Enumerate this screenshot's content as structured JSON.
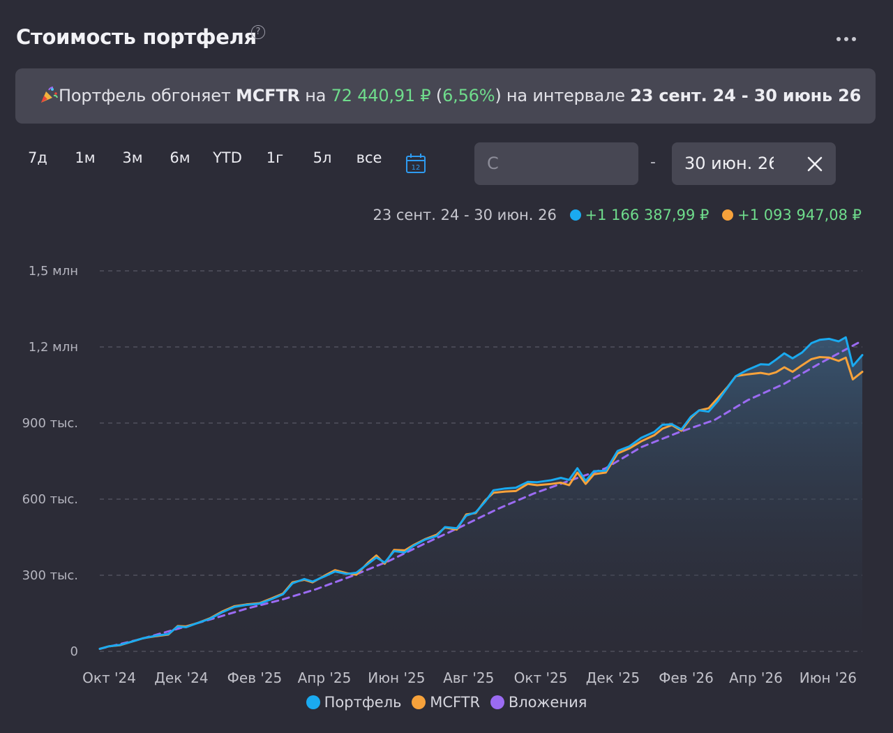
{
  "header": {
    "title": "Стоимость портфеля",
    "help_icon": "question-circle-icon",
    "more_icon": "more-horizontal-icon"
  },
  "banner": {
    "icon": "party-popper-icon",
    "text_1": "Портфель обгоняет ",
    "benchmark": "MCFTR",
    "text_2": " на ",
    "diff_value": "72 440,91 ₽",
    "text_3": " (",
    "diff_percent": "6,56%",
    "text_4": ") на интервале ",
    "interval": "23 сент. 24 - 30 июнь 26"
  },
  "periods": [
    "7д",
    "1м",
    "3м",
    "6м",
    "YTD",
    "1г",
    "5л",
    "все"
  ],
  "calendar": {
    "icon": "calendar-icon",
    "day": "12",
    "color": "#2e9bf0"
  },
  "date_range": {
    "from_placeholder": "С",
    "separator": "-",
    "to_value": "30 июн. 26",
    "clear_icon": "close-icon"
  },
  "summary": {
    "range": "23 сент. 24 - 30 июн. 26",
    "portfolio_change": "+1 166 387,99 ₽",
    "benchmark_change": "+1 093 947,08 ₽"
  },
  "colors": {
    "background": "#2c2c37",
    "positive": "#6fdc8c",
    "portfolio": "#1aaaf0",
    "mcftr": "#f7a23b",
    "investments": "#9b6bf2"
  },
  "legend": [
    {
      "name": "Портфель",
      "color": "#1aaaf0"
    },
    {
      "name": "MCFTR",
      "color": "#f7a23b"
    },
    {
      "name": "Вложения",
      "color": "#9b6bf2"
    }
  ],
  "chart_data": {
    "type": "line",
    "y_ticks": [
      {
        "value": 0,
        "label": "0"
      },
      {
        "value": 300000,
        "label": "300 тыс."
      },
      {
        "value": 600000,
        "label": "600 тыс."
      },
      {
        "value": 900000,
        "label": "900 тыс."
      },
      {
        "value": 1200000,
        "label": "1,2 млн"
      },
      {
        "value": 1500000,
        "label": "1,5 млн"
      }
    ],
    "ylim": [
      0,
      1500000
    ],
    "x_ticks": [
      {
        "date": "2024-10-01",
        "label": "Окт '24"
      },
      {
        "date": "2024-12-01",
        "label": "Дек '24"
      },
      {
        "date": "2025-02-01",
        "label": "Фев '25"
      },
      {
        "date": "2025-04-01",
        "label": "Апр '25"
      },
      {
        "date": "2025-06-01",
        "label": "Июн '25"
      },
      {
        "date": "2025-08-01",
        "label": "Авг '25"
      },
      {
        "date": "2025-10-01",
        "label": "Окт '25"
      },
      {
        "date": "2025-12-01",
        "label": "Дек '25"
      },
      {
        "date": "2026-02-01",
        "label": "Фев '26"
      },
      {
        "date": "2026-04-01",
        "label": "Апр '26"
      },
      {
        "date": "2026-06-01",
        "label": "Июн '26"
      }
    ],
    "xlim": [
      "2024-09-23",
      "2026-06-30"
    ],
    "grid": true,
    "legend_position": "bottom",
    "series": [
      {
        "name": "Портфель",
        "color": "#1aaaf0",
        "style": "solid",
        "points": [
          [
            "2024-09-23",
            10000
          ],
          [
            "2024-10-01",
            20000
          ],
          [
            "2024-10-10",
            25000
          ],
          [
            "2024-10-20",
            38000
          ],
          [
            "2024-10-30",
            52000
          ],
          [
            "2024-11-10",
            62000
          ],
          [
            "2024-11-20",
            68000
          ],
          [
            "2024-11-28",
            98000
          ],
          [
            "2024-12-05",
            95000
          ],
          [
            "2024-12-15",
            112000
          ],
          [
            "2024-12-25",
            128000
          ],
          [
            "2025-01-05",
            155000
          ],
          [
            "2025-01-15",
            175000
          ],
          [
            "2025-01-25",
            183000
          ],
          [
            "2025-02-05",
            188000
          ],
          [
            "2025-02-15",
            205000
          ],
          [
            "2025-02-25",
            225000
          ],
          [
            "2025-03-05",
            268000
          ],
          [
            "2025-03-15",
            285000
          ],
          [
            "2025-03-22",
            275000
          ],
          [
            "2025-04-01",
            295000
          ],
          [
            "2025-04-10",
            315000
          ],
          [
            "2025-04-20",
            305000
          ],
          [
            "2025-04-28",
            310000
          ],
          [
            "2025-05-08",
            345000
          ],
          [
            "2025-05-15",
            370000
          ],
          [
            "2025-05-22",
            350000
          ],
          [
            "2025-05-30",
            395000
          ],
          [
            "2025-06-08",
            390000
          ],
          [
            "2025-06-15",
            415000
          ],
          [
            "2025-06-25",
            440000
          ],
          [
            "2025-07-05",
            455000
          ],
          [
            "2025-07-12",
            490000
          ],
          [
            "2025-07-22",
            485000
          ],
          [
            "2025-07-30",
            535000
          ],
          [
            "2025-08-07",
            548000
          ],
          [
            "2025-08-15",
            590000
          ],
          [
            "2025-08-22",
            635000
          ],
          [
            "2025-09-01",
            642000
          ],
          [
            "2025-09-10",
            645000
          ],
          [
            "2025-09-20",
            668000
          ],
          [
            "2025-09-28",
            667000
          ],
          [
            "2025-10-10",
            675000
          ],
          [
            "2025-10-18",
            684000
          ],
          [
            "2025-10-25",
            676000
          ],
          [
            "2025-11-01",
            722000
          ],
          [
            "2025-11-08",
            672000
          ],
          [
            "2025-11-15",
            710000
          ],
          [
            "2025-11-25",
            712000
          ],
          [
            "2025-12-05",
            790000
          ],
          [
            "2025-12-15",
            808000
          ],
          [
            "2025-12-25",
            842000
          ],
          [
            "2026-01-05",
            865000
          ],
          [
            "2026-01-12",
            893000
          ],
          [
            "2026-01-20",
            895000
          ],
          [
            "2026-01-28",
            875000
          ],
          [
            "2026-02-05",
            925000
          ],
          [
            "2026-02-12",
            950000
          ],
          [
            "2026-02-20",
            945000
          ],
          [
            "2026-02-28",
            988000
          ],
          [
            "2026-03-08",
            1040000
          ],
          [
            "2026-03-15",
            1085000
          ],
          [
            "2026-03-25",
            1110000
          ],
          [
            "2026-04-05",
            1132000
          ],
          [
            "2026-04-12",
            1130000
          ],
          [
            "2026-04-18",
            1150000
          ],
          [
            "2026-04-25",
            1175000
          ],
          [
            "2026-05-02",
            1155000
          ],
          [
            "2026-05-10",
            1178000
          ],
          [
            "2026-05-18",
            1215000
          ],
          [
            "2026-05-25",
            1228000
          ],
          [
            "2026-06-02",
            1232000
          ],
          [
            "2026-06-10",
            1222000
          ],
          [
            "2026-06-16",
            1238000
          ],
          [
            "2026-06-22",
            1125000
          ],
          [
            "2026-06-30",
            1168000
          ]
        ]
      },
      {
        "name": "MCFTR",
        "color": "#f7a23b",
        "style": "solid",
        "points": [
          [
            "2024-09-23",
            10000
          ],
          [
            "2024-10-01",
            20000
          ],
          [
            "2024-10-10",
            24000
          ],
          [
            "2024-10-20",
            38000
          ],
          [
            "2024-10-30",
            52000
          ],
          [
            "2024-11-10",
            60000
          ],
          [
            "2024-11-20",
            66000
          ],
          [
            "2024-11-28",
            100000
          ],
          [
            "2024-12-05",
            98000
          ],
          [
            "2024-12-15",
            112000
          ],
          [
            "2024-12-25",
            130000
          ],
          [
            "2025-01-05",
            158000
          ],
          [
            "2025-01-15",
            178000
          ],
          [
            "2025-01-25",
            185000
          ],
          [
            "2025-02-05",
            190000
          ],
          [
            "2025-02-15",
            208000
          ],
          [
            "2025-02-25",
            228000
          ],
          [
            "2025-03-05",
            272000
          ],
          [
            "2025-03-15",
            282000
          ],
          [
            "2025-03-22",
            272000
          ],
          [
            "2025-04-01",
            298000
          ],
          [
            "2025-04-10",
            320000
          ],
          [
            "2025-04-20",
            308000
          ],
          [
            "2025-04-28",
            302000
          ],
          [
            "2025-05-08",
            350000
          ],
          [
            "2025-05-15",
            378000
          ],
          [
            "2025-05-22",
            345000
          ],
          [
            "2025-05-30",
            400000
          ],
          [
            "2025-06-08",
            398000
          ],
          [
            "2025-06-15",
            418000
          ],
          [
            "2025-06-25",
            442000
          ],
          [
            "2025-07-05",
            460000
          ],
          [
            "2025-07-12",
            488000
          ],
          [
            "2025-07-22",
            480000
          ],
          [
            "2025-07-30",
            540000
          ],
          [
            "2025-08-07",
            545000
          ],
          [
            "2025-08-15",
            595000
          ],
          [
            "2025-08-22",
            625000
          ],
          [
            "2025-09-01",
            630000
          ],
          [
            "2025-09-10",
            632000
          ],
          [
            "2025-09-20",
            660000
          ],
          [
            "2025-09-28",
            655000
          ],
          [
            "2025-10-10",
            660000
          ],
          [
            "2025-10-18",
            665000
          ],
          [
            "2025-10-25",
            655000
          ],
          [
            "2025-11-01",
            705000
          ],
          [
            "2025-11-08",
            660000
          ],
          [
            "2025-11-15",
            698000
          ],
          [
            "2025-11-25",
            705000
          ],
          [
            "2025-12-05",
            780000
          ],
          [
            "2025-12-15",
            800000
          ],
          [
            "2025-12-25",
            828000
          ],
          [
            "2026-01-05",
            852000
          ],
          [
            "2026-01-12",
            878000
          ],
          [
            "2026-01-20",
            892000
          ],
          [
            "2026-01-28",
            870000
          ],
          [
            "2026-02-05",
            920000
          ],
          [
            "2026-02-12",
            950000
          ],
          [
            "2026-02-20",
            958000
          ],
          [
            "2026-02-28",
            1000000
          ],
          [
            "2026-03-08",
            1042000
          ],
          [
            "2026-03-15",
            1085000
          ],
          [
            "2026-03-25",
            1092000
          ],
          [
            "2026-04-05",
            1098000
          ],
          [
            "2026-04-12",
            1092000
          ],
          [
            "2026-04-18",
            1100000
          ],
          [
            "2026-04-25",
            1120000
          ],
          [
            "2026-05-02",
            1102000
          ],
          [
            "2026-05-10",
            1128000
          ],
          [
            "2026-05-18",
            1152000
          ],
          [
            "2026-05-25",
            1160000
          ],
          [
            "2026-06-02",
            1158000
          ],
          [
            "2026-06-10",
            1145000
          ],
          [
            "2026-06-16",
            1158000
          ],
          [
            "2026-06-22",
            1072000
          ],
          [
            "2026-06-30",
            1102000
          ]
        ]
      },
      {
        "name": "Вложения",
        "color": "#9b6bf2",
        "style": "dashed",
        "points": [
          [
            "2024-09-23",
            10000
          ],
          [
            "2024-10-25",
            45000
          ],
          [
            "2024-11-25",
            85000
          ],
          [
            "2024-12-25",
            125000
          ],
          [
            "2025-01-25",
            168000
          ],
          [
            "2025-02-25",
            205000
          ],
          [
            "2025-03-25",
            245000
          ],
          [
            "2025-04-25",
            298000
          ],
          [
            "2025-05-25",
            355000
          ],
          [
            "2025-06-25",
            425000
          ],
          [
            "2025-07-25",
            490000
          ],
          [
            "2025-08-25",
            560000
          ],
          [
            "2025-09-25",
            622000
          ],
          [
            "2025-10-25",
            672000
          ],
          [
            "2025-11-25",
            722000
          ],
          [
            "2025-12-25",
            805000
          ],
          [
            "2026-01-25",
            862000
          ],
          [
            "2026-02-25",
            912000
          ],
          [
            "2026-03-25",
            990000
          ],
          [
            "2026-04-25",
            1055000
          ],
          [
            "2026-05-25",
            1135000
          ],
          [
            "2026-06-30",
            1225000
          ]
        ]
      }
    ]
  }
}
